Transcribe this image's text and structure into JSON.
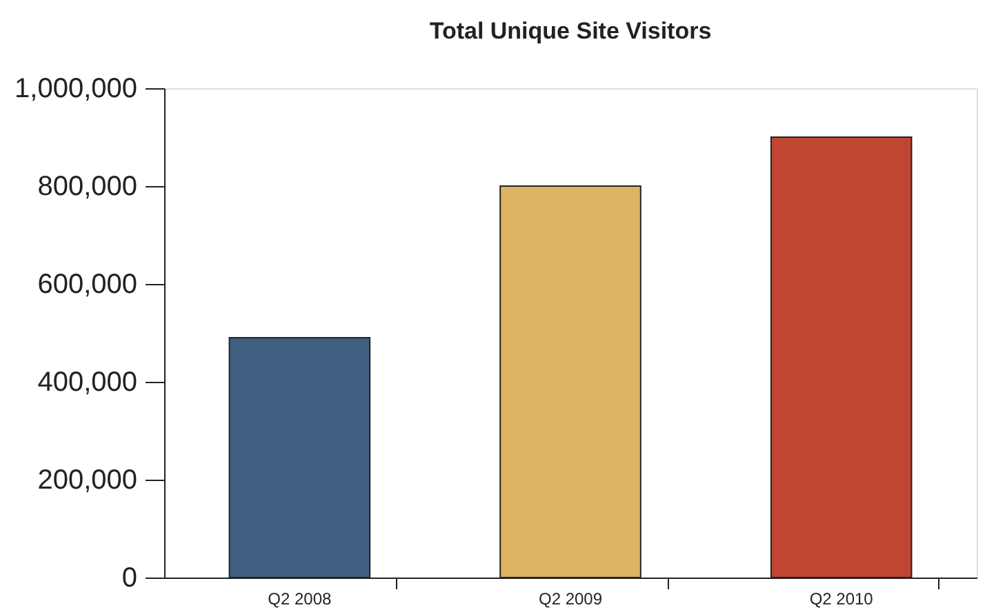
{
  "chart_data": {
    "type": "bar",
    "title": "Total Unique Site Visitors",
    "categories": [
      "Q2 2008",
      "Q2 2009",
      "Q2 2010"
    ],
    "values": [
      490000,
      800000,
      900000
    ],
    "colors": [
      "#3f5f82",
      "#dcb462",
      "#c04632"
    ],
    "ylim": [
      0,
      1000000
    ],
    "yticks": [
      0,
      {
        "value": 200000,
        "label": "200,000"
      },
      {
        "value": 400000,
        "label": "400,000"
      },
      {
        "value": 600000,
        "label": "600,000"
      },
      {
        "value": 800000,
        "label": "800,000"
      },
      {
        "value": 1000000,
        "label": "1,000,000"
      }
    ],
    "grid": false
  }
}
